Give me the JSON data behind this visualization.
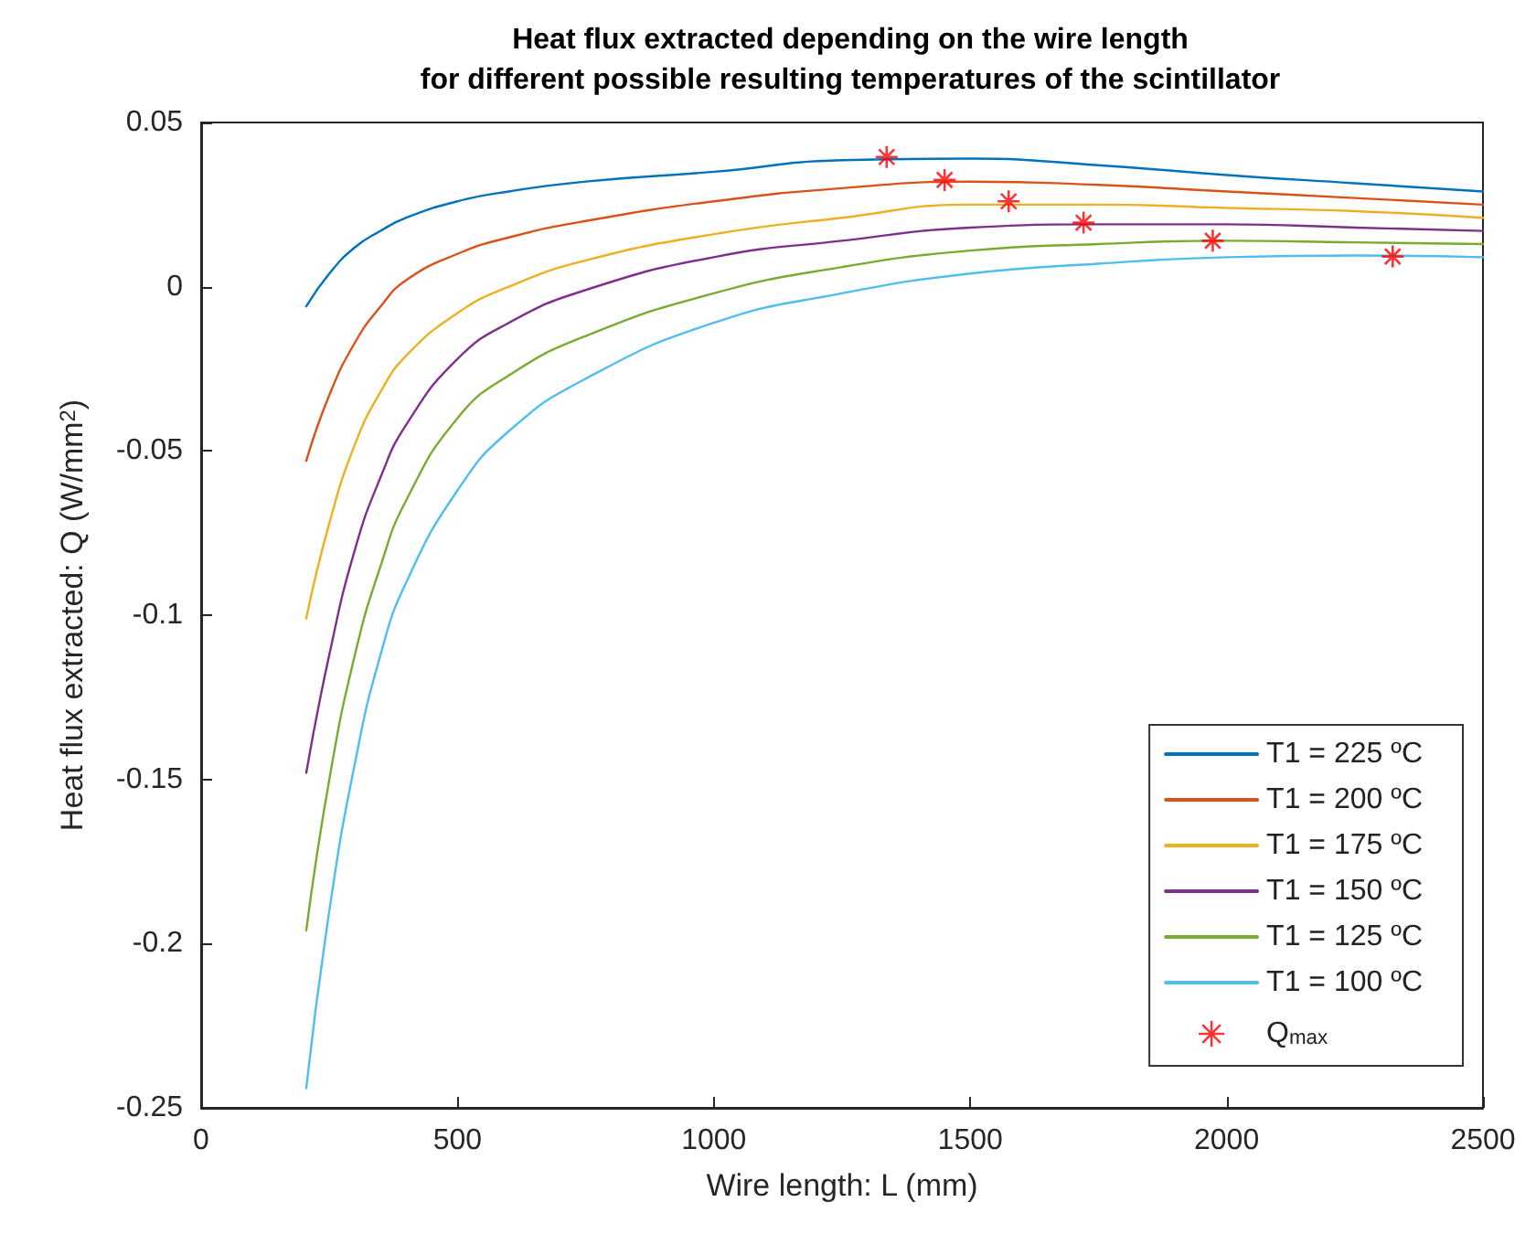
{
  "chart_data": {
    "type": "line",
    "title": "Heat flux extracted depending on the wire length\nfor different possible resulting temperatures of the scintillator",
    "xlabel": "Wire length: L (mm)",
    "ylabel": "Heat flux extracted: Q (W/mm$^{2}$)",
    "xlim": [
      0,
      2500
    ],
    "xticks": [
      0,
      500,
      1000,
      1500,
      2000,
      2500
    ],
    "ylim": [
      -0.25,
      0.05
    ],
    "yticks": [
      -0.25,
      -0.2,
      -0.15,
      -0.1,
      -0.05,
      0,
      0.05
    ],
    "grid": false,
    "legend": "bottom right",
    "line_style": "solid",
    "series": [
      {
        "name": "T1 = 225 ºC",
        "color": "#0072bd",
        "marker": "none",
        "x": [
          205,
          250,
          300,
          350,
          400,
          500,
          600,
          750,
          1000,
          1250,
          1500,
          1750,
          2000,
          2250,
          2500
        ],
        "values": [
          -0.006,
          0.004,
          0.012,
          0.017,
          0.021,
          0.026,
          0.029,
          0.032,
          0.035,
          0.0385,
          0.039,
          0.037,
          0.034,
          0.0315,
          0.029
        ]
      },
      {
        "name": "T1 = 200 ºC",
        "color": "#d95319",
        "marker": "none",
        "x": [
          205,
          250,
          300,
          350,
          400,
          500,
          600,
          750,
          1000,
          1250,
          1500,
          1750,
          2000,
          2250,
          2500
        ],
        "values": [
          -0.053,
          -0.033,
          -0.017,
          -0.006,
          0.002,
          0.01,
          0.015,
          0.02,
          0.026,
          0.03,
          0.032,
          0.031,
          0.029,
          0.027,
          0.025
        ]
      },
      {
        "name": "T1 = 175 ºC",
        "color": "#edb120",
        "marker": "none",
        "x": [
          205,
          250,
          300,
          350,
          400,
          500,
          600,
          750,
          1000,
          1250,
          1500,
          1750,
          2000,
          2250,
          2500
        ],
        "values": [
          -0.101,
          -0.072,
          -0.048,
          -0.032,
          -0.021,
          -0.008,
          0,
          0.008,
          0.016,
          0.021,
          0.025,
          0.025,
          0.024,
          0.023,
          0.021
        ]
      },
      {
        "name": "T1 = 150 ºC",
        "color": "#7e2f8e",
        "marker": "none",
        "x": [
          205,
          250,
          300,
          350,
          400,
          500,
          600,
          750,
          1000,
          1250,
          1500,
          1750,
          2000,
          2250,
          2500
        ],
        "values": [
          -0.148,
          -0.112,
          -0.08,
          -0.058,
          -0.042,
          -0.022,
          -0.011,
          -0.001,
          0.009,
          0.014,
          0.018,
          0.019,
          0.019,
          0.018,
          0.017
        ]
      },
      {
        "name": "T1 = 125 ºC",
        "color": "#77ac30",
        "marker": "none",
        "x": [
          205,
          250,
          300,
          350,
          400,
          500,
          600,
          750,
          1000,
          1250,
          1500,
          1750,
          2000,
          2250,
          2500
        ],
        "values": [
          -0.196,
          -0.15,
          -0.112,
          -0.085,
          -0.065,
          -0.04,
          -0.027,
          -0.015,
          -0.002,
          0.006,
          0.011,
          0.013,
          0.014,
          0.0135,
          0.013
        ]
      },
      {
        "name": "T1 = 100 ºC",
        "color": "#4dbeee",
        "marker": "none",
        "x": [
          205,
          250,
          300,
          350,
          400,
          500,
          600,
          750,
          1000,
          1250,
          1500,
          1750,
          2000,
          2250,
          2500
        ],
        "values": [
          -0.244,
          -0.19,
          -0.145,
          -0.112,
          -0.09,
          -0.062,
          -0.044,
          -0.028,
          -0.011,
          -0.002,
          0.004,
          0.007,
          0.009,
          0.0095,
          0.009
        ]
      },
      {
        "name": "Q$_{max}$",
        "type": "scatter",
        "color": "#ff0000",
        "marker": "cross",
        "x": [
          1337,
          1450,
          1575,
          1721,
          1973,
          2324
        ],
        "values": [
          0.0395,
          0.0325,
          0.026,
          0.0195,
          0.014,
          0.0092
        ]
      }
    ]
  }
}
